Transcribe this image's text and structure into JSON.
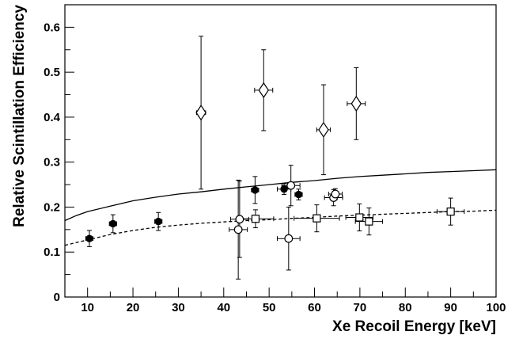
{
  "chart_data": {
    "type": "scatter",
    "xlabel": "Xe Recoil Energy [keV]",
    "ylabel": "Relative Scintillation Efficiency",
    "xlim": [
      5,
      100
    ],
    "ylim": [
      0,
      0.65
    ],
    "x_ticks": [
      10,
      20,
      30,
      40,
      50,
      60,
      70,
      80,
      90,
      100
    ],
    "x_tick_labels": [
      "10",
      "20",
      "30",
      "40",
      "50",
      "60",
      "70",
      "80",
      "90",
      "100"
    ],
    "y_ticks": [
      0,
      0.1,
      0.2,
      0.3,
      0.4,
      0.5,
      0.6
    ],
    "y_tick_labels": [
      "0",
      "0.1",
      "0.2",
      "0.3",
      "0.4",
      "0.5",
      "0.6"
    ],
    "grid": false,
    "series": [
      {
        "marker": "filled-circle",
        "points": [
          {
            "x": 10.4,
            "y": 0.13,
            "xerr": 0.8,
            "yerr": [
              0.018,
              0.018
            ]
          },
          {
            "x": 15.6,
            "y": 0.163,
            "xerr": 0.8,
            "yerr": [
              0.02,
              0.02
            ]
          },
          {
            "x": 25.6,
            "y": 0.168,
            "xerr": 0.8,
            "yerr": [
              0.02,
              0.02
            ]
          },
          {
            "x": 46.9,
            "y": 0.238,
            "xerr": 0.8,
            "yerr": [
              0.03,
              0.03
            ]
          },
          {
            "x": 53.3,
            "y": 0.24,
            "xerr": 1.5,
            "yerr": [
              0.012,
              0.012
            ]
          },
          {
            "x": 56.5,
            "y": 0.228,
            "xerr": 0.8,
            "yerr": [
              0.012,
              0.012
            ]
          }
        ]
      },
      {
        "marker": "open-circle",
        "points": [
          {
            "x": 43.2,
            "y": 0.15,
            "xerr": 2.0,
            "yerr": [
              0.11,
              0.11
            ]
          },
          {
            "x": 43.5,
            "y": 0.173,
            "xerr": 2.0,
            "yerr": [
              0.085,
              0.085
            ]
          },
          {
            "x": 54.3,
            "y": 0.13,
            "xerr": 2.5,
            "yerr": [
              0.07,
              0.07
            ]
          },
          {
            "x": 54.8,
            "y": 0.248,
            "xerr": 2.0,
            "yerr": [
              0.045,
              0.045
            ]
          },
          {
            "x": 64.2,
            "y": 0.221,
            "xerr": 2.0,
            "yerr": [
              0.018,
              0.018
            ]
          },
          {
            "x": 64.6,
            "y": 0.229,
            "xerr": 1.5,
            "yerr": [
              0.012,
              0.012
            ]
          }
        ]
      },
      {
        "marker": "open-square",
        "points": [
          {
            "x": 47.0,
            "y": 0.174,
            "xerr": 4.0,
            "yerr": [
              0.02,
              0.02
            ]
          },
          {
            "x": 60.5,
            "y": 0.175,
            "xerr": 5.0,
            "yerr": [
              0.03,
              0.03
            ]
          },
          {
            "x": 69.9,
            "y": 0.177,
            "xerr": 3.0,
            "yerr": [
              0.03,
              0.03
            ]
          },
          {
            "x": 72.0,
            "y": 0.168,
            "xerr": 3.0,
            "yerr": [
              0.03,
              0.03
            ]
          },
          {
            "x": 90.0,
            "y": 0.19,
            "xerr": 3.0,
            "yerr": [
              0.03,
              0.03
            ]
          }
        ]
      },
      {
        "marker": "open-diamond",
        "points": [
          {
            "x": 35.0,
            "y": 0.41,
            "xerr": 1.0,
            "yerr": [
              0.17,
              0.17
            ]
          },
          {
            "x": 48.8,
            "y": 0.46,
            "xerr": 2.0,
            "yerr": [
              0.09,
              0.09
            ]
          },
          {
            "x": 62.0,
            "y": 0.372,
            "xerr": 1.5,
            "yerr": [
              0.1,
              0.1
            ]
          },
          {
            "x": 69.2,
            "y": 0.43,
            "xerr": 2.0,
            "yerr": [
              0.08,
              0.08
            ]
          }
        ]
      }
    ],
    "curves": [
      {
        "style": "solid",
        "points": [
          [
            5,
            0.17
          ],
          [
            7.5,
            0.181
          ],
          [
            10,
            0.19
          ],
          [
            15,
            0.202
          ],
          [
            20,
            0.214
          ],
          [
            25,
            0.222
          ],
          [
            30,
            0.229
          ],
          [
            35,
            0.234
          ],
          [
            40,
            0.24
          ],
          [
            45,
            0.245
          ],
          [
            50,
            0.25
          ],
          [
            55,
            0.255
          ],
          [
            60,
            0.259
          ],
          [
            65,
            0.264
          ],
          [
            70,
            0.268
          ],
          [
            75,
            0.271
          ],
          [
            80,
            0.274
          ],
          [
            85,
            0.277
          ],
          [
            90,
            0.279
          ],
          [
            95,
            0.281
          ],
          [
            100,
            0.283
          ]
        ]
      },
      {
        "style": "dashed",
        "points": [
          [
            5,
            0.115
          ],
          [
            7.5,
            0.121
          ],
          [
            10,
            0.127
          ],
          [
            15,
            0.139
          ],
          [
            20,
            0.148
          ],
          [
            25,
            0.155
          ],
          [
            30,
            0.16
          ],
          [
            35,
            0.164
          ],
          [
            40,
            0.167
          ],
          [
            45,
            0.17
          ],
          [
            50,
            0.172
          ],
          [
            55,
            0.175
          ],
          [
            60,
            0.177
          ],
          [
            65,
            0.18
          ],
          [
            70,
            0.182
          ],
          [
            75,
            0.184
          ],
          [
            80,
            0.186
          ],
          [
            85,
            0.188
          ],
          [
            90,
            0.19
          ],
          [
            95,
            0.191
          ],
          [
            100,
            0.193
          ]
        ]
      }
    ]
  }
}
